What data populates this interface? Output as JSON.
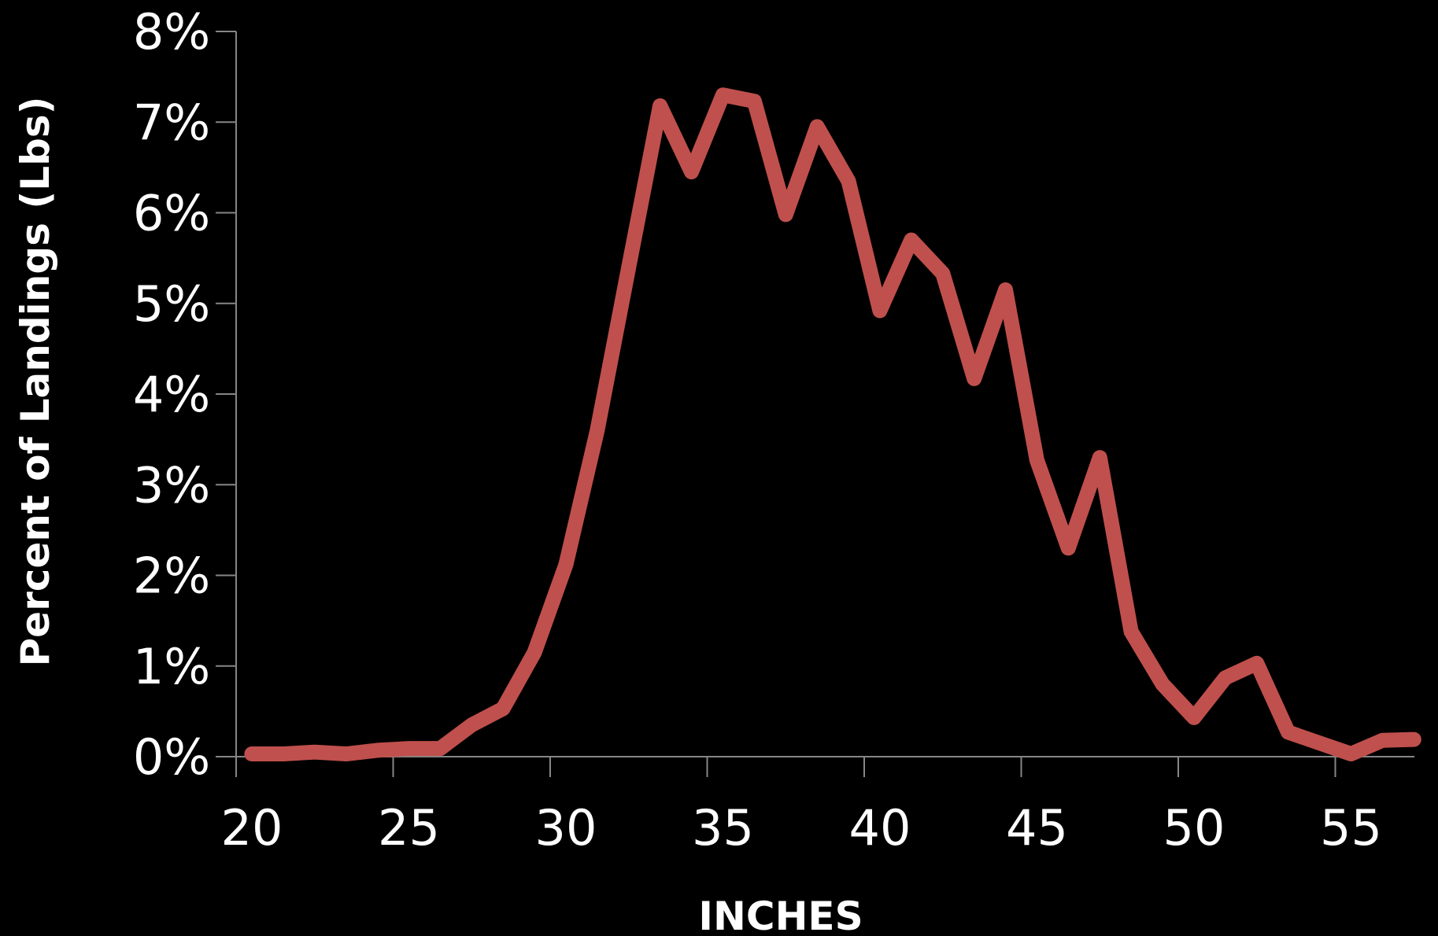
{
  "chart_data": {
    "type": "line",
    "xlabel": "INCHES",
    "ylabel": "Percent of Landings (Lbs)",
    "xlim": [
      20,
      57.5
    ],
    "ylim": [
      0,
      8
    ],
    "x_ticks": [
      20,
      25,
      30,
      35,
      40,
      45,
      50,
      55
    ],
    "x_tick_labels": [
      "20",
      "25",
      "30",
      "35",
      "40",
      "45",
      "50",
      "55"
    ],
    "y_ticks": [
      0,
      1,
      2,
      3,
      4,
      5,
      6,
      7,
      8
    ],
    "y_tick_labels": [
      "0%",
      "1%",
      "2%",
      "3%",
      "4%",
      "5%",
      "6%",
      "7%",
      "8%"
    ],
    "grid": false,
    "line_color": "#c0504d",
    "background_color": "#000000",
    "series": [
      {
        "x": [
          20.5,
          21.5,
          22.5,
          23.5,
          24.5,
          25.5,
          26.5,
          27.5,
          28.5,
          29.5,
          30.5,
          31.5,
          32.5,
          33.5,
          34.5,
          35.5,
          36.5,
          37.5,
          38.5,
          39.5,
          40.5,
          41.5,
          42.5,
          43.5,
          44.5,
          45.5,
          46.5,
          47.5,
          48.5,
          49.5,
          50.5,
          51.5,
          52.5,
          53.5,
          54.5,
          55.5,
          56.5,
          57.5
        ],
        "values": [
          0.03,
          0.03,
          0.05,
          0.03,
          0.07,
          0.09,
          0.09,
          0.35,
          0.53,
          1.15,
          2.12,
          3.6,
          5.4,
          7.18,
          6.45,
          7.3,
          7.23,
          5.98,
          6.95,
          6.35,
          4.92,
          5.7,
          5.33,
          4.17,
          5.15,
          3.27,
          2.3,
          3.3,
          1.38,
          0.8,
          0.43,
          0.87,
          1.03,
          0.27,
          0.15,
          0.03,
          0.18,
          0.19
        ]
      }
    ]
  }
}
